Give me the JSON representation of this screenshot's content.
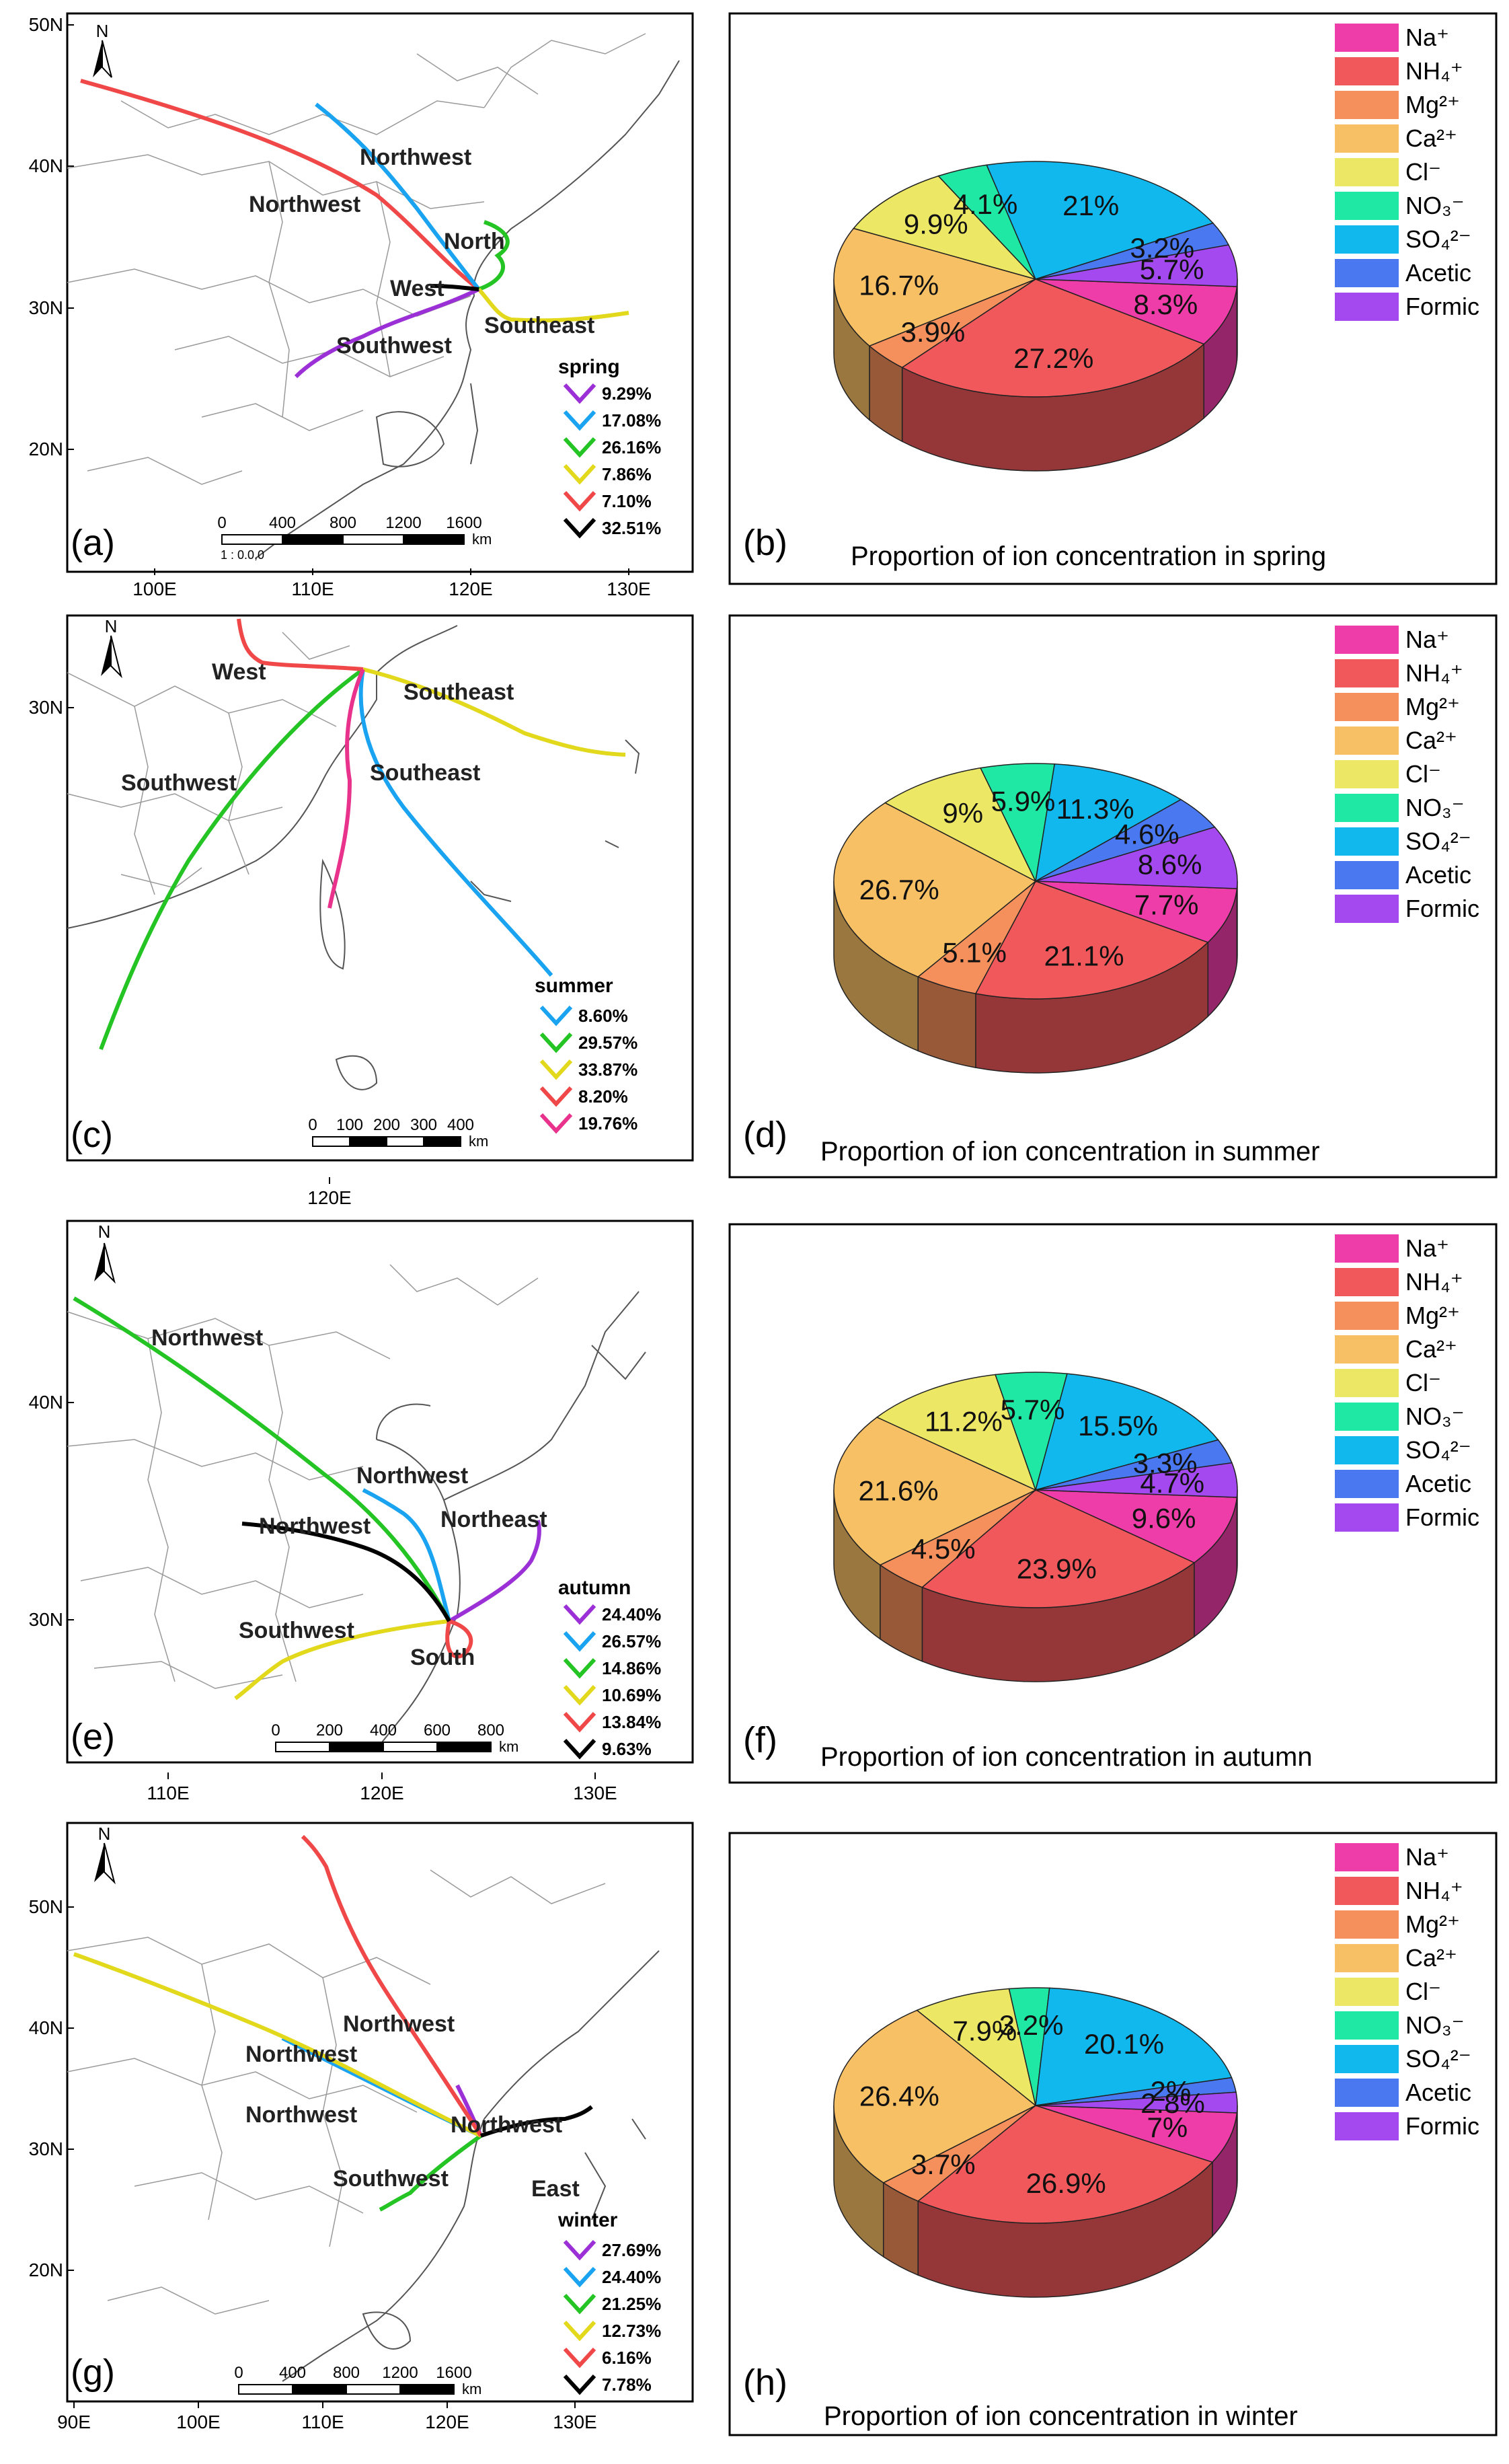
{
  "panels": {
    "a": {
      "label": "(a)",
      "season": "spring"
    },
    "b": {
      "label": "(b)"
    },
    "c": {
      "label": "(c)",
      "season": "summer"
    },
    "d": {
      "label": "(d)"
    },
    "e": {
      "label": "(e)",
      "season": "autumn"
    },
    "f": {
      "label": "(f)"
    },
    "g": {
      "label": "(g)",
      "season": "winter"
    },
    "h": {
      "label": "(h)"
    }
  },
  "colors": {
    "purple": "#9b30d6",
    "blue": "#1aa3f0",
    "green": "#25c425",
    "yellow": "#e2d81c",
    "red": "#f04848",
    "black": "#000000",
    "magenta": "#e8328c"
  },
  "icons": {
    "north_arrow": "north-arrow-icon",
    "legend_chevron": "chevron-icon"
  },
  "legend_ions": [
    {
      "label": "Na⁺",
      "color": "#ee3ca8"
    },
    {
      "label": "NH₄⁺",
      "color": "#f0585c"
    },
    {
      "label": "Mg²⁺",
      "color": "#f5905c"
    },
    {
      "label": "Ca²⁺",
      "color": "#f8c064"
    },
    {
      "label": "Cl⁻",
      "color": "#ece866"
    },
    {
      "label": "NO₃⁻",
      "color": "#1ee8a4"
    },
    {
      "label": "SO₄²⁻",
      "color": "#10b8ee"
    },
    {
      "label": "Acetic",
      "color": "#4a78f0"
    },
    {
      "label": "Formic",
      "color": "#a448f0"
    }
  ],
  "maps": [
    {
      "id": "a",
      "season": "spring",
      "yticks": [
        "50N",
        "40N",
        "30N",
        "20N"
      ],
      "xticks": [
        "100E",
        "110E",
        "120E",
        "130E"
      ],
      "scale_labels": [
        "0",
        "400",
        "800",
        "1200",
        "1600"
      ],
      "scale_unit": "km",
      "ratio": "1 : 0.0,0",
      "trajectories": [
        {
          "color": "purple",
          "percent": "9.29%"
        },
        {
          "color": "blue",
          "percent": "17.08%"
        },
        {
          "color": "green",
          "percent": "26.16%"
        },
        {
          "color": "yellow",
          "percent": "7.86%"
        },
        {
          "color": "red",
          "percent": "7.10%"
        },
        {
          "color": "black",
          "percent": "32.51%"
        }
      ],
      "regions": [
        "Northwest",
        "Northwest",
        "North",
        "West",
        "Southeast",
        "Southwest"
      ]
    },
    {
      "id": "c",
      "season": "summer",
      "yticks": [
        "30N"
      ],
      "xticks": [
        "120E"
      ],
      "scale_labels": [
        "0",
        "100",
        "200",
        "300",
        "400"
      ],
      "scale_unit": "km",
      "ratio": "",
      "trajectories": [
        {
          "color": "blue",
          "percent": "8.60%"
        },
        {
          "color": "green",
          "percent": "29.57%"
        },
        {
          "color": "yellow",
          "percent": "33.87%"
        },
        {
          "color": "red",
          "percent": "8.20%"
        },
        {
          "color": "magenta",
          "percent": "19.76%"
        }
      ],
      "regions": [
        "West",
        "Southeast",
        "Southwest",
        "Southeast"
      ]
    },
    {
      "id": "e",
      "season": "autumn",
      "yticks": [
        "40N",
        "30N"
      ],
      "xticks": [
        "110E",
        "120E",
        "130E"
      ],
      "scale_labels": [
        "0",
        "200",
        "400",
        "600",
        "800"
      ],
      "scale_unit": "km",
      "ratio": "",
      "trajectories": [
        {
          "color": "purple",
          "percent": "24.40%"
        },
        {
          "color": "blue",
          "percent": "26.57%"
        },
        {
          "color": "green",
          "percent": "14.86%"
        },
        {
          "color": "yellow",
          "percent": "10.69%"
        },
        {
          "color": "red",
          "percent": "13.84%"
        },
        {
          "color": "black",
          "percent": "9.63%"
        }
      ],
      "regions": [
        "Northwest",
        "Northwest",
        "Northwest",
        "Northeast",
        "Southwest",
        "South"
      ]
    },
    {
      "id": "g",
      "season": "winter",
      "yticks": [
        "50N",
        "40N",
        "30N",
        "20N"
      ],
      "xticks": [
        "90E",
        "100E",
        "110E",
        "120E",
        "130E"
      ],
      "scale_labels": [
        "0",
        "400",
        "800",
        "1200",
        "1600"
      ],
      "scale_unit": "km",
      "ratio": "",
      "trajectories": [
        {
          "color": "purple",
          "percent": "27.69%"
        },
        {
          "color": "blue",
          "percent": "24.40%"
        },
        {
          "color": "green",
          "percent": "21.25%"
        },
        {
          "color": "yellow",
          "percent": "12.73%"
        },
        {
          "color": "red",
          "percent": "6.16%"
        },
        {
          "color": "black",
          "percent": "7.78%"
        }
      ],
      "regions": [
        "Northwest",
        "Northwest",
        "Northwest",
        "Northwest",
        "Southwest",
        "East"
      ]
    }
  ],
  "chart_data": [
    {
      "type": "pie",
      "id": "b",
      "title": "Proportion of ion concentration in spring",
      "categories": [
        "Na⁺",
        "NH₄⁺",
        "Mg²⁺",
        "Ca²⁺",
        "Cl⁻",
        "NO₃⁻",
        "SO₄²⁻",
        "Acetic",
        "Formic"
      ],
      "values": [
        8.3,
        27.2,
        3.9,
        16.7,
        9.9,
        4.1,
        21,
        3.2,
        5.7
      ],
      "labels": [
        "8.3%",
        "27.2%",
        "3.9%",
        "16.7%",
        "9.9%",
        "4.1%",
        "21%",
        "3.2%",
        "5.7%"
      ]
    },
    {
      "type": "pie",
      "id": "d",
      "title": "Proportion of ion concentration in summer",
      "categories": [
        "Na⁺",
        "NH₄⁺",
        "Mg²⁺",
        "Ca²⁺",
        "Cl⁻",
        "NO₃⁻",
        "SO₄²⁻",
        "Acetic",
        "Formic"
      ],
      "values": [
        7.7,
        21.1,
        5.1,
        26.7,
        9,
        5.9,
        11.3,
        4.6,
        8.6
      ],
      "labels": [
        "7.7%",
        "21.1%",
        "5.1%",
        "26.7%",
        "9%",
        "5.9%",
        "11.3%",
        "4.6%",
        "8.6%"
      ]
    },
    {
      "type": "pie",
      "id": "f",
      "title": "Proportion of ion concentration in autumn",
      "categories": [
        "Na⁺",
        "NH₄⁺",
        "Mg²⁺",
        "Ca²⁺",
        "Cl⁻",
        "NO₃⁻",
        "SO₄²⁻",
        "Acetic",
        "Formic"
      ],
      "values": [
        9.6,
        23.9,
        4.5,
        21.6,
        11.2,
        5.7,
        15.5,
        3.3,
        4.7
      ],
      "labels": [
        "9.6%",
        "23.9%",
        "4.5%",
        "21.6%",
        "11.2%",
        "5.7%",
        "15.5%",
        "3.3%",
        "4.7%"
      ]
    },
    {
      "type": "pie",
      "id": "h",
      "title": "Proportion of ion concentration in winter",
      "categories": [
        "Na⁺",
        "NH₄⁺",
        "Mg²⁺",
        "Ca²⁺",
        "Cl⁻",
        "NO₃⁻",
        "SO₄²⁻",
        "Acetic",
        "Formic"
      ],
      "values": [
        7,
        26.9,
        3.7,
        26.4,
        7.9,
        3.2,
        20.1,
        2,
        2.8
      ],
      "labels": [
        "7%",
        "26.9%",
        "3.7%",
        "26.4%",
        "7.9%",
        "3.2%",
        "20.1%",
        "2%",
        "2.8%"
      ]
    }
  ]
}
